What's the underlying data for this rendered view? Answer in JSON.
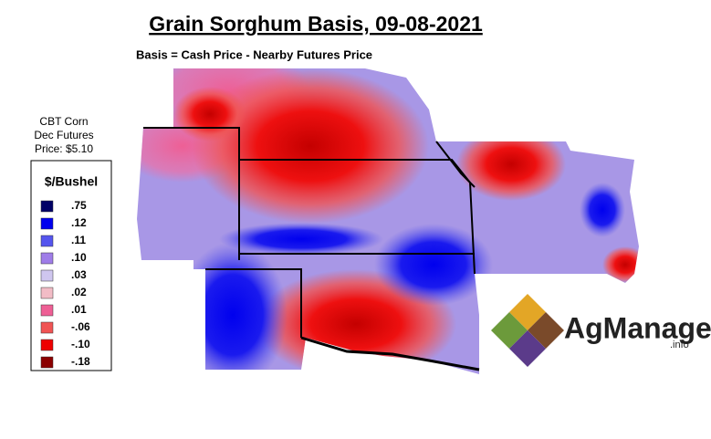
{
  "title": "Grain Sorghum Basis, 09-08-2021",
  "subtitle": "Basis = Cash Price - Nearby Futures Price",
  "futures_note": {
    "lines": [
      "CBT Corn",
      "Dec Futures",
      "Price: $5.10"
    ]
  },
  "legend": {
    "title": "$/Bushel",
    "items": [
      {
        "label": ".75",
        "color": "#000066"
      },
      {
        "label": ".12",
        "color": "#0000ee"
      },
      {
        "label": ".11",
        "color": "#5555ee"
      },
      {
        "label": ".10",
        "color": "#9f7de8"
      },
      {
        "label": ".03",
        "color": "#cfc6ef"
      },
      {
        "label": ".02",
        "color": "#f2bcc6"
      },
      {
        "label": ".01",
        "color": "#ee5f95"
      },
      {
        "label": "-.06",
        "color": "#f05454"
      },
      {
        "label": "-.10",
        "color": "#ee0000"
      },
      {
        "label": "-.18",
        "color": "#8b0000"
      }
    ]
  },
  "logo": {
    "name": "AgManager",
    "suffix": ".info"
  }
}
